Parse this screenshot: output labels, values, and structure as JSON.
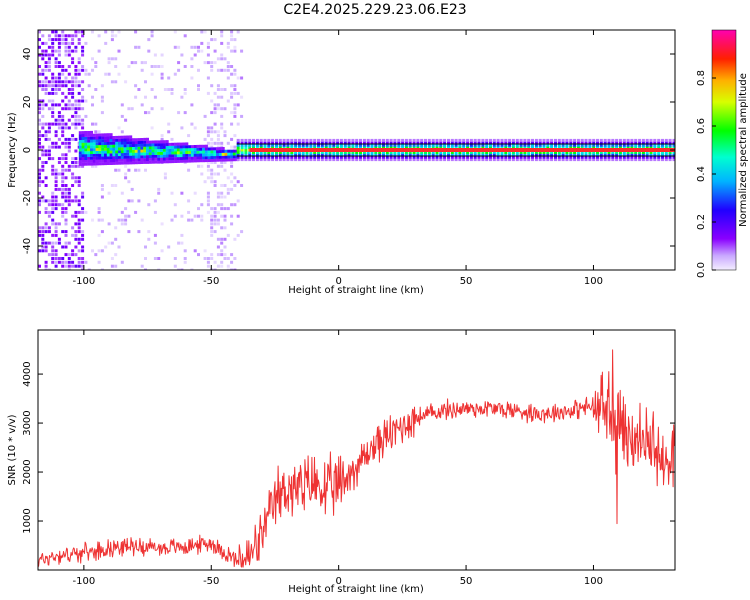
{
  "title": "C2E4.2025.229.23.06.E23",
  "colors": {
    "snr_line": "#ee3333",
    "spectrogram_ridge": "#ff2a2a",
    "axes": "#000000",
    "background": "#ffffff"
  },
  "chart_data": [
    {
      "type": "heatmap",
      "xlabel": "Height of straight line (km)",
      "ylabel": "Frequency (Hz)",
      "xlim": [
        -118,
        132
      ],
      "ylim": [
        -50,
        50
      ],
      "xticks": [
        -100,
        -50,
        0,
        50,
        100
      ],
      "yticks": [
        -40,
        -20,
        0,
        20,
        40
      ],
      "grid": false,
      "colorbar": {
        "label": "Normalized spectral amplitude",
        "range": [
          0,
          1
        ],
        "ticks": [
          0.0,
          0.2,
          0.4,
          0.6,
          0.8
        ],
        "colormap": "rainbow (purple → blue → cyan → green → yellow → orange → red → magenta)"
      },
      "features": {
        "ridge_frequency_hz": 0,
        "dense_noise_x_range": [
          -118,
          -100
        ],
        "scattered_noise_x_range": [
          -100,
          -40
        ],
        "wide_band_x_range": [
          -102,
          -40
        ],
        "narrow_band_x_range": [
          -40,
          132
        ]
      }
    },
    {
      "type": "line",
      "xlabel": "Height of straight line (km)",
      "ylabel": "SNR (10 * v/v)",
      "xlim": [
        -118,
        132
      ],
      "ylim": [
        0,
        4900
      ],
      "xticks": [
        -100,
        -50,
        0,
        50,
        100
      ],
      "yticks": [
        1000,
        2000,
        3000,
        4000
      ],
      "grid": false,
      "series": [
        {
          "x": [
            -118,
            -110,
            -100,
            -90,
            -80,
            -70,
            -60,
            -50,
            -40,
            -35,
            -30,
            -25,
            -20,
            -15,
            -10,
            -5,
            0,
            5,
            10,
            15,
            20,
            25,
            30,
            40,
            50,
            60,
            70,
            80,
            90,
            95,
            100,
            105,
            110,
            115,
            120,
            125,
            132
          ],
          "values": [
            200,
            300,
            350,
            450,
            500,
            450,
            480,
            550,
            200,
            250,
            700,
            1400,
            1700,
            1600,
            1800,
            1600,
            1700,
            2000,
            2300,
            2600,
            2750,
            2950,
            3100,
            3250,
            3300,
            3300,
            3250,
            3200,
            3250,
            3300,
            3350,
            3250,
            3050,
            2700,
            2600,
            2300,
            2500
          ]
        }
      ]
    }
  ]
}
